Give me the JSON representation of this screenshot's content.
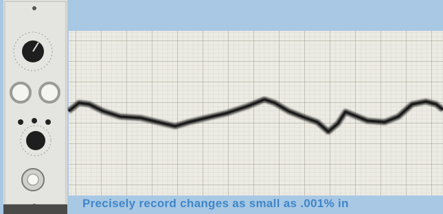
{
  "caption": "Precisely record changes as small as .001% in"
}
